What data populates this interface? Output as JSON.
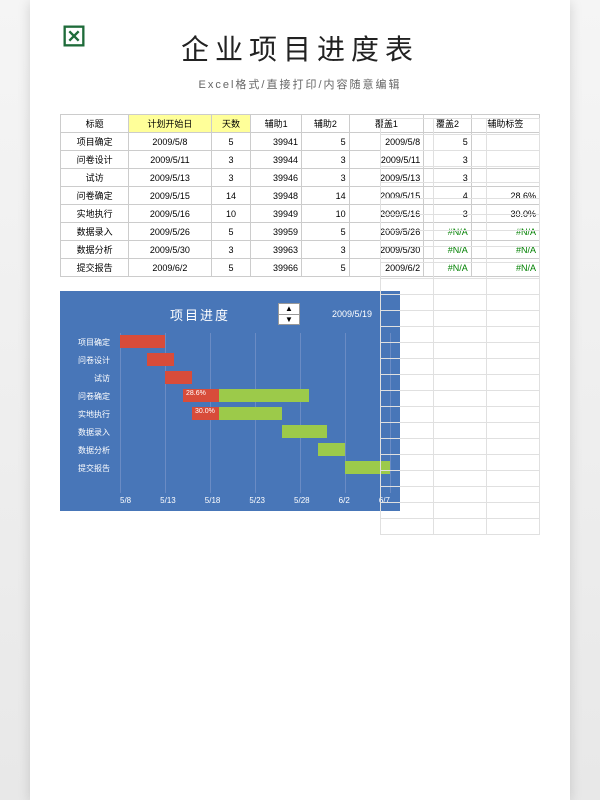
{
  "header": {
    "title": "企业项目进度表",
    "subtitle": "Excel格式/直接打印/内容随意编辑"
  },
  "table": {
    "columns": [
      "标题",
      "计划开始日",
      "天数",
      "辅助1",
      "辅助2",
      "覆盖1",
      "覆盖2",
      "辅助标签"
    ],
    "rows": [
      [
        "项目确定",
        "2009/5/8",
        "5",
        "39941",
        "5",
        "2009/5/8",
        "5",
        ""
      ],
      [
        "问卷设计",
        "2009/5/11",
        "3",
        "39944",
        "3",
        "2009/5/11",
        "3",
        ""
      ],
      [
        "试访",
        "2009/5/13",
        "3",
        "39946",
        "3",
        "2009/5/13",
        "3",
        ""
      ],
      [
        "问卷确定",
        "2009/5/15",
        "14",
        "39948",
        "14",
        "2009/5/15",
        "4",
        "28.6%"
      ],
      [
        "实地执行",
        "2009/5/16",
        "10",
        "39949",
        "10",
        "2009/5/16",
        "3",
        "30.0%"
      ],
      [
        "数据录入",
        "2009/5/26",
        "5",
        "39959",
        "5",
        "2009/5/26",
        "#N/A",
        "#N/A"
      ],
      [
        "数据分析",
        "2009/5/30",
        "3",
        "39963",
        "3",
        "2009/5/30",
        "#N/A",
        "#N/A"
      ],
      [
        "提交报告",
        "2009/6/2",
        "5",
        "39966",
        "5",
        "2009/6/2",
        "#N/A",
        "#N/A"
      ]
    ]
  },
  "chart": {
    "title": "项目进度",
    "date_marker": "2009/5/19",
    "background_color": "#4876b8",
    "grid_color": "#6a8bc4",
    "bar_red": "#d84c3a",
    "bar_green": "#9cca4a",
    "x_ticks": [
      "5/8",
      "5/13",
      "5/18",
      "5/23",
      "5/28",
      "6/2",
      "6/7"
    ],
    "x_start": 39941,
    "x_end": 39971,
    "tasks": [
      {
        "label": "项目确定",
        "red_start": 39941,
        "red_len": 5,
        "green_start": 0,
        "green_len": 0,
        "pct": ""
      },
      {
        "label": "问卷设计",
        "red_start": 39944,
        "red_len": 3,
        "green_start": 0,
        "green_len": 0,
        "pct": ""
      },
      {
        "label": "试访",
        "red_start": 39946,
        "red_len": 3,
        "green_start": 0,
        "green_len": 0,
        "pct": ""
      },
      {
        "label": "问卷确定",
        "red_start": 39948,
        "red_len": 4,
        "green_start": 39952,
        "green_len": 10,
        "pct": "28.6%"
      },
      {
        "label": "实地执行",
        "red_start": 39949,
        "red_len": 3,
        "green_start": 39952,
        "green_len": 7,
        "pct": "30.0%"
      },
      {
        "label": "数据录入",
        "red_start": 0,
        "red_len": 0,
        "green_start": 39959,
        "green_len": 5,
        "pct": ""
      },
      {
        "label": "数据分析",
        "red_start": 0,
        "red_len": 0,
        "green_start": 39963,
        "green_len": 3,
        "pct": ""
      },
      {
        "label": "提交报告",
        "red_start": 0,
        "red_len": 0,
        "green_start": 39966,
        "green_len": 5,
        "pct": ""
      }
    ]
  }
}
